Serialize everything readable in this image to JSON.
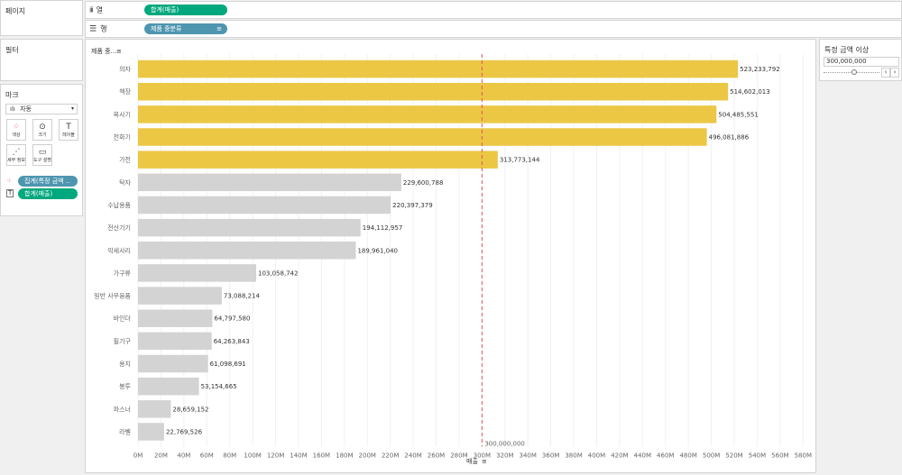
{
  "pages_panel": {
    "title": "페이지"
  },
  "columns_shelf": {
    "label": "열",
    "pill": "합계(매출)"
  },
  "rows_shelf": {
    "label": "행",
    "pill": "제품 중분류"
  },
  "filters_panel": {
    "title": "필터"
  },
  "marks_panel": {
    "title": "마크",
    "dropdown_value": "자동",
    "buttons": [
      "색상",
      "크기",
      "레이블",
      "세부 정보",
      "도구 설명"
    ],
    "pills": [
      "집계(특정 금액 ..",
      "합계(매출)"
    ]
  },
  "parameter": {
    "title": "특정 금액 이상",
    "value": "300,000,000"
  },
  "colors": {
    "highlight": "#ebc744",
    "normal": "#d3d3d3",
    "reference_line": "#e15759",
    "pill_green": "#00a87d",
    "pill_blue": "#4e96b0"
  },
  "chart_data": {
    "type": "bar",
    "orientation": "horizontal",
    "row_header": "제품 중...",
    "xlabel": "매출",
    "categories": [
      "의자",
      "책장",
      "복사기",
      "전화기",
      "가전",
      "탁자",
      "수납용품",
      "전산기기",
      "악세사리",
      "가구류",
      "일반 사무용품",
      "바인더",
      "필기구",
      "용지",
      "봉투",
      "파스너",
      "라벨"
    ],
    "values": [
      523233792,
      514602013,
      504485551,
      496081886,
      313773144,
      229600788,
      220397379,
      194112957,
      189961040,
      103058742,
      73088214,
      64797580,
      64263843,
      61098691,
      53154665,
      28659152,
      22769526
    ],
    "value_labels": [
      "523,233,792",
      "514,602,013",
      "504,485,551",
      "496,081,886",
      "313,773,144",
      "229,600,788",
      "220,397,379",
      "194,112,957",
      "189,961,040",
      "103,058,742",
      "73,088,214",
      "64,797,580",
      "64,263,843",
      "61,098,691",
      "53,154,665",
      "28,659,152",
      "22,769,526"
    ],
    "xlim": [
      0,
      590000000
    ],
    "x_ticks": [
      0,
      20000000,
      40000000,
      60000000,
      80000000,
      100000000,
      120000000,
      140000000,
      160000000,
      180000000,
      200000000,
      220000000,
      240000000,
      260000000,
      280000000,
      300000000,
      320000000,
      340000000,
      360000000,
      380000000,
      400000000,
      420000000,
      440000000,
      460000000,
      480000000,
      500000000,
      520000000,
      540000000,
      560000000,
      580000000
    ],
    "x_tick_labels": [
      "0M",
      "20M",
      "40M",
      "60M",
      "80M",
      "100M",
      "120M",
      "140M",
      "160M",
      "180M",
      "200M",
      "220M",
      "240M",
      "260M",
      "280M",
      "300M",
      "320M",
      "340M",
      "360M",
      "380M",
      "400M",
      "420M",
      "440M",
      "460M",
      "480M",
      "500M",
      "520M",
      "540M",
      "560M",
      "580M"
    ],
    "reference_line": {
      "value": 300000000,
      "label": "300,000,000"
    },
    "threshold": 300000000
  }
}
